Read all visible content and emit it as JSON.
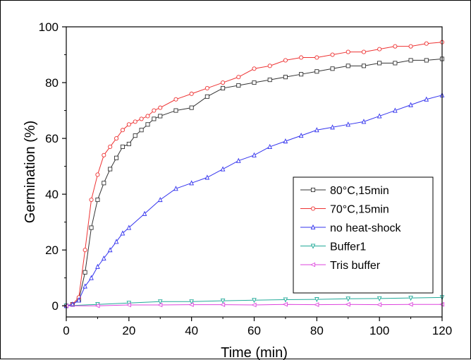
{
  "chart_data": {
    "type": "line",
    "title": "",
    "xlabel": "Time (min)",
    "ylabel": "Germination (%)",
    "xlim": [
      0,
      120
    ],
    "ylim": [
      -4,
      100
    ],
    "xticks": [
      "0",
      "20",
      "40",
      "60",
      "80",
      "100",
      "120"
    ],
    "yticks": [
      "0",
      "20",
      "40",
      "60",
      "80",
      "100"
    ],
    "grid": false,
    "legend_position": "center-right",
    "series": [
      {
        "name": "80°C,15min",
        "color": "#333333",
        "marker": "square",
        "x": [
          0,
          2,
          4,
          6,
          8,
          10,
          12,
          14,
          16,
          18,
          20,
          22,
          24,
          26,
          28,
          30,
          35,
          40,
          45,
          50,
          55,
          60,
          65,
          70,
          75,
          80,
          85,
          90,
          95,
          100,
          105,
          110,
          115,
          120
        ],
        "y": [
          0,
          0.5,
          2,
          12,
          28,
          38,
          44,
          49,
          53,
          57,
          58,
          61,
          63,
          65,
          67,
          68,
          70,
          71,
          75,
          78,
          79,
          80,
          81,
          82,
          83,
          84,
          85,
          86,
          86,
          87,
          87,
          88,
          88,
          88.5
        ]
      },
      {
        "name": "70°C,15min",
        "color": "#ee3333",
        "marker": "circle",
        "x": [
          0,
          2,
          4,
          6,
          8,
          10,
          12,
          14,
          16,
          18,
          20,
          22,
          24,
          26,
          28,
          30,
          35,
          40,
          45,
          50,
          55,
          60,
          65,
          70,
          75,
          80,
          85,
          90,
          95,
          100,
          105,
          110,
          115,
          120
        ],
        "y": [
          0,
          0.5,
          3,
          20,
          38,
          47,
          54,
          57,
          60,
          63,
          65,
          66,
          67,
          68,
          70,
          71,
          74,
          76,
          78,
          80,
          82,
          85,
          86,
          88,
          89,
          89,
          90,
          91,
          91,
          92,
          93,
          93,
          94,
          94.5
        ]
      },
      {
        "name": "no heat-shock",
        "color": "#3333ee",
        "marker": "triangle-up",
        "x": [
          0,
          2,
          4,
          6,
          8,
          10,
          12,
          14,
          16,
          18,
          20,
          25,
          30,
          35,
          40,
          45,
          50,
          55,
          60,
          65,
          70,
          75,
          80,
          85,
          90,
          95,
          100,
          105,
          110,
          115,
          120
        ],
        "y": [
          0,
          0.5,
          2,
          7,
          10,
          14,
          17,
          20,
          23,
          26,
          28,
          33,
          38,
          42,
          44,
          46,
          49,
          52,
          54,
          57,
          59,
          61,
          63,
          64,
          65,
          66,
          68,
          70,
          72,
          74,
          75.5
        ]
      },
      {
        "name": "Buffer1",
        "color": "#22aa99",
        "marker": "triangle-down",
        "x": [
          0,
          10,
          20,
          30,
          40,
          50,
          60,
          70,
          80,
          90,
          100,
          110,
          120
        ],
        "y": [
          0,
          0.5,
          1,
          1.5,
          1.5,
          1.8,
          2,
          2.2,
          2.3,
          2.5,
          2.6,
          2.8,
          3
        ]
      },
      {
        "name": "Tris buffer",
        "color": "#dd44dd",
        "marker": "triangle-left",
        "x": [
          0,
          10,
          20,
          30,
          40,
          50,
          60,
          70,
          80,
          90,
          100,
          110,
          120
        ],
        "y": [
          0,
          0,
          0.3,
          0.3,
          0.4,
          0.4,
          0.3,
          0.5,
          0.4,
          0.5,
          0.4,
          0.5,
          0.5
        ]
      }
    ]
  }
}
